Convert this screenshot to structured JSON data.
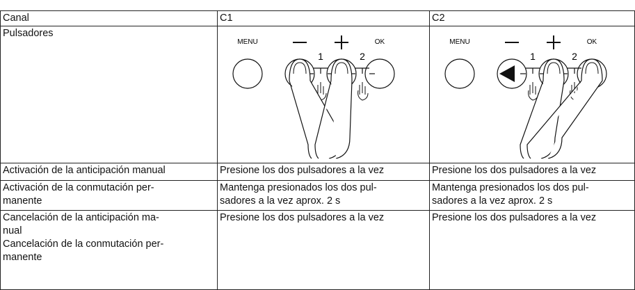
{
  "table": {
    "header": [
      "Canal",
      "C1",
      "C2"
    ],
    "rows": [
      [
        [
          "Pulsadores"
        ],
        {
          "labels": [
            "MENU",
            "OK",
            "1",
            "2"
          ]
        },
        {
          "labels": [
            "MENU",
            "OK",
            "1",
            "2"
          ]
        }
      ],
      [
        [
          "Activación de la anticipación manual"
        ],
        [
          "Presione los dos pulsadores a la vez"
        ],
        [
          "Presione los dos pulsadores a la vez"
        ]
      ],
      [
        [
          "Activación de la conmutación per-",
          "manente"
        ],
        [
          "Mantenga presionados los dos pul-",
          "sadores a la vez aprox. 2 s"
        ],
        [
          "Mantenga presionados los dos pul-",
          "sadores a la vez aprox. 2 s"
        ]
      ],
      [
        [
          "Cancelación de la anticipación ma-",
          "nual",
          "Cancelación de la conmutación per-",
          "manente"
        ],
        [
          "Presione los dos pulsadores a la vez"
        ],
        [
          "Presione los dos pulsadores a la vez"
        ]
      ]
    ]
  }
}
